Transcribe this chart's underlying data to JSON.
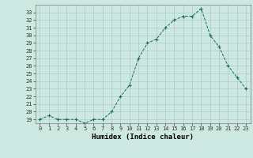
{
  "x": [
    0,
    1,
    2,
    3,
    4,
    5,
    6,
    7,
    8,
    9,
    10,
    11,
    12,
    13,
    14,
    15,
    16,
    17,
    18,
    19,
    20,
    21,
    22,
    23
  ],
  "y": [
    19,
    19.5,
    19,
    19,
    19,
    18.5,
    19,
    19,
    20,
    22,
    23.5,
    27,
    29,
    29.5,
    31,
    32,
    32.5,
    32.5,
    33.5,
    30,
    28.5,
    26,
    24.5,
    23
  ],
  "title": "",
  "xlabel": "Humidex (Indice chaleur)",
  "ylabel": "",
  "line_color": "#1a6b5a",
  "marker": "+",
  "marker_size": 3,
  "bg_color": "#cce8e0",
  "grid_color": "#aacccc",
  "ylim": [
    18.5,
    34
  ],
  "xlim": [
    -0.5,
    23.5
  ],
  "yticks": [
    19,
    20,
    21,
    22,
    23,
    24,
    25,
    26,
    27,
    28,
    29,
    30,
    31,
    32,
    33
  ],
  "xticks": [
    0,
    1,
    2,
    3,
    4,
    5,
    6,
    7,
    8,
    9,
    10,
    11,
    12,
    13,
    14,
    15,
    16,
    17,
    18,
    19,
    20,
    21,
    22,
    23
  ]
}
